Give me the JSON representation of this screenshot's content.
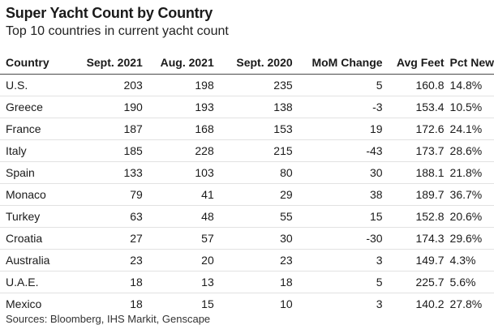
{
  "title": "Super Yacht Count by Country",
  "subtitle": "Top 10 countries in current yacht count",
  "source": "Sources: Bloomberg, IHS Markit, Genscape",
  "chart_data": {
    "type": "table",
    "title": "Super Yacht Count by Country",
    "subtitle": "Top 10 countries in current yacht count",
    "columns": [
      "Country",
      "Sept. 2021",
      "Aug. 2021",
      "Sept. 2020",
      "MoM Change",
      "Avg Feet",
      "Pct New"
    ],
    "rows": [
      [
        "U.S.",
        "203",
        "198",
        "235",
        "5",
        "160.8",
        "14.8%"
      ],
      [
        "Greece",
        "190",
        "193",
        "138",
        "-3",
        "153.4",
        "10.5%"
      ],
      [
        "France",
        "187",
        "168",
        "153",
        "19",
        "172.6",
        "24.1%"
      ],
      [
        "Italy",
        "185",
        "228",
        "215",
        "-43",
        "173.7",
        "28.6%"
      ],
      [
        "Spain",
        "133",
        "103",
        "80",
        "30",
        "188.1",
        "21.8%"
      ],
      [
        "Monaco",
        "79",
        "41",
        "29",
        "38",
        "189.7",
        "36.7%"
      ],
      [
        "Turkey",
        "63",
        "48",
        "55",
        "15",
        "152.8",
        "20.6%"
      ],
      [
        "Croatia",
        "27",
        "57",
        "30",
        "-30",
        "174.3",
        "29.6%"
      ],
      [
        "Australia",
        "23",
        "20",
        "23",
        "3",
        "149.7",
        "4.3%"
      ],
      [
        "U.A.E.",
        "18",
        "13",
        "18",
        "5",
        "225.7",
        "5.6%"
      ],
      [
        "Mexico",
        "18",
        "15",
        "10",
        "3",
        "140.2",
        "27.8%"
      ]
    ]
  }
}
